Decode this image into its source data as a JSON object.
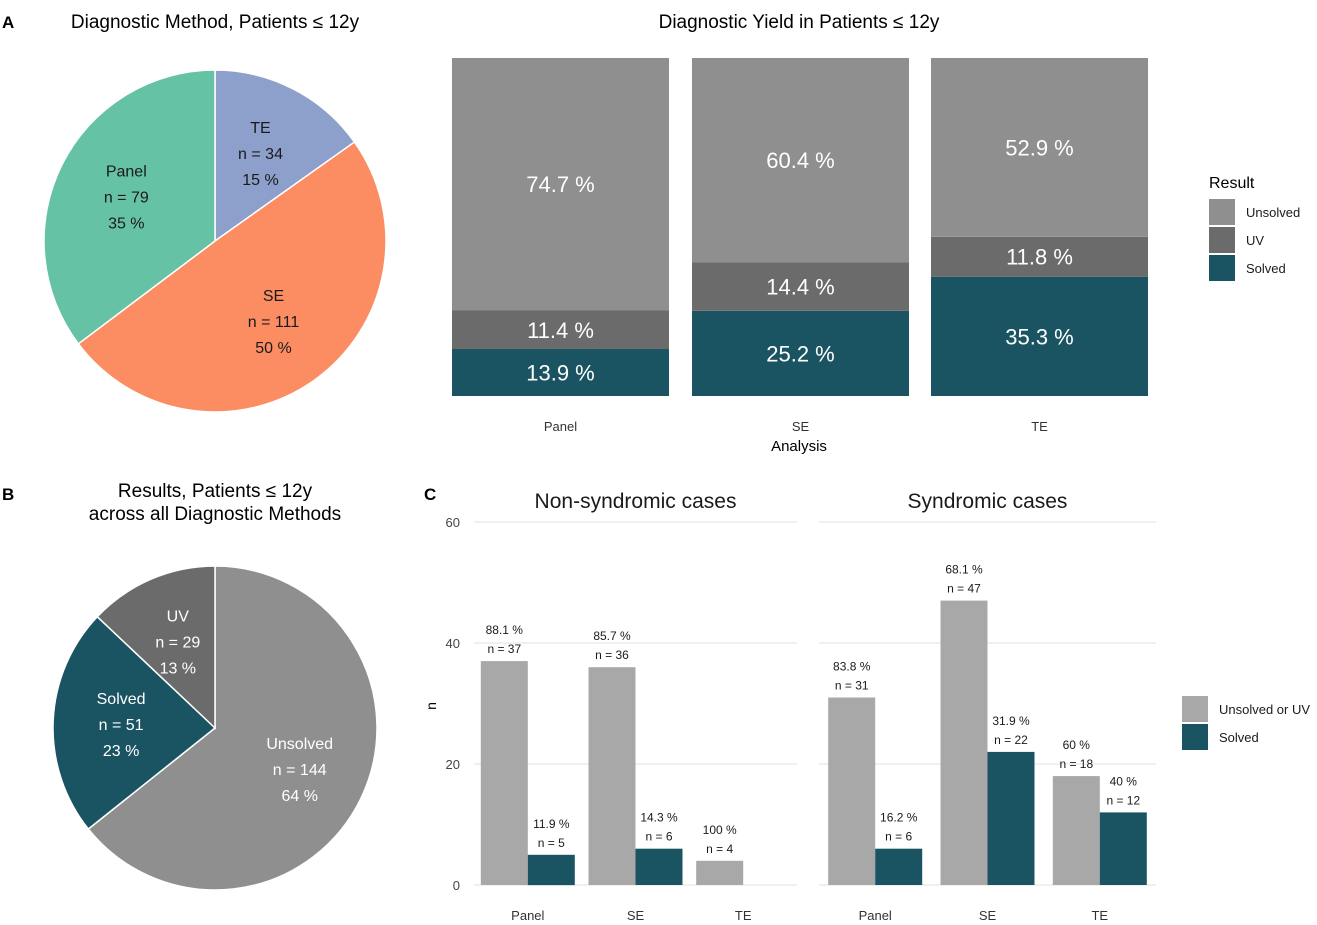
{
  "panel_labels": {
    "a": "A",
    "b": "B",
    "c": "C"
  },
  "colors": {
    "teal": "#1a5462",
    "unsolved_gray": "#8f8f8f",
    "uv_gray": "#6b6b6b",
    "light_gray": "#a8a8a8",
    "panel_green": "#66c2a5",
    "se_orange": "#fc8d62",
    "te_blue": "#8da0cb"
  },
  "chart_data": [
    {
      "id": "pie_method",
      "type": "pie",
      "title": "Diagnostic Method, Patients ≤ 12y",
      "slices": [
        {
          "label": "TE",
          "n_text": "n = 34",
          "pct_text": "15 %",
          "value": 34,
          "color": "#8da0cb",
          "text_color": "#1a1a1a"
        },
        {
          "label": "SE",
          "n_text": "n = 111",
          "pct_text": "50 %",
          "value": 111,
          "color": "#fc8d62",
          "text_color": "#1a1a1a"
        },
        {
          "label": "Panel",
          "n_text": "n = 79",
          "pct_text": "35 %",
          "value": 79,
          "color": "#66c2a5",
          "text_color": "#1a1a1a"
        }
      ]
    },
    {
      "id": "stacked_yield",
      "type": "bar",
      "stacked": true,
      "title": "Diagnostic Yield in Patients ≤ 12y",
      "xlabel": "Analysis",
      "categories": [
        "Panel",
        "SE",
        "TE"
      ],
      "ylim": [
        0,
        100
      ],
      "series": [
        {
          "name": "Solved",
          "color": "#1a5462",
          "values": [
            13.9,
            25.2,
            35.3
          ],
          "labels": [
            "13.9 %",
            "25.2 %",
            "35.3 %"
          ]
        },
        {
          "name": "UV",
          "color": "#6b6b6b",
          "values": [
            11.4,
            14.4,
            11.8
          ],
          "labels": [
            "11.4 %",
            "14.4 %",
            "11.8 %"
          ]
        },
        {
          "name": "Unsolved",
          "color": "#8f8f8f",
          "values": [
            74.7,
            60.4,
            52.9
          ],
          "labels": [
            "74.7 %",
            "60.4 %",
            "52.9 %"
          ]
        }
      ],
      "legend": {
        "title": "Result",
        "position": "right",
        "entries": [
          {
            "name": "Unsolved",
            "color": "#8f8f8f"
          },
          {
            "name": "UV",
            "color": "#6b6b6b"
          },
          {
            "name": "Solved",
            "color": "#1a5462"
          }
        ]
      }
    },
    {
      "id": "pie_results",
      "type": "pie",
      "title": "Results, Patients ≤ 12y",
      "subtitle": "across all Diagnostic Methods",
      "slices": [
        {
          "label": "Unsolved",
          "n_text": "n = 144",
          "pct_text": "64 %",
          "value": 144,
          "color": "#8f8f8f",
          "text_color": "#ffffff"
        },
        {
          "label": "Solved",
          "n_text": "n = 51",
          "pct_text": "23 %",
          "value": 51,
          "color": "#1a5462",
          "text_color": "#ffffff"
        },
        {
          "label": "UV",
          "n_text": "n = 29",
          "pct_text": "13 %",
          "value": 29,
          "color": "#6b6b6b",
          "text_color": "#ffffff"
        }
      ]
    },
    {
      "id": "grouped_facets",
      "type": "bar",
      "grouped": true,
      "ylabel": "n",
      "ylim": [
        0,
        60
      ],
      "yticks": [
        0,
        20,
        40,
        60
      ],
      "categories": [
        "Panel",
        "SE",
        "TE"
      ],
      "legend": {
        "position": "right",
        "entries": [
          {
            "name": "Unsolved or UV",
            "color": "#a8a8a8"
          },
          {
            "name": "Solved",
            "color": "#1a5462"
          }
        ]
      },
      "facets": [
        {
          "title": "Non-syndromic cases",
          "series": [
            {
              "name": "Unsolved or UV",
              "values": [
                37,
                36,
                4
              ],
              "pct_labels": [
                "88.1 %",
                "85.7 %",
                "100 %"
              ],
              "n_labels": [
                "n = 37",
                "n = 36",
                "n = 4"
              ]
            },
            {
              "name": "Solved",
              "values": [
                5,
                6,
                null
              ],
              "pct_labels": [
                "11.9 %",
                "14.3 %",
                null
              ],
              "n_labels": [
                "n = 5",
                "n = 6",
                null
              ]
            }
          ]
        },
        {
          "title": "Syndromic cases",
          "series": [
            {
              "name": "Unsolved or UV",
              "values": [
                31,
                47,
                18
              ],
              "pct_labels": [
                "83.8 %",
                "68.1 %",
                "60 %"
              ],
              "n_labels": [
                "n = 31",
                "n = 47",
                "n = 18"
              ]
            },
            {
              "name": "Solved",
              "values": [
                6,
                22,
                12
              ],
              "pct_labels": [
                "16.2 %",
                "31.9 %",
                "40 %"
              ],
              "n_labels": [
                "n = 6",
                "n = 22",
                "n = 12"
              ]
            }
          ]
        }
      ]
    }
  ]
}
